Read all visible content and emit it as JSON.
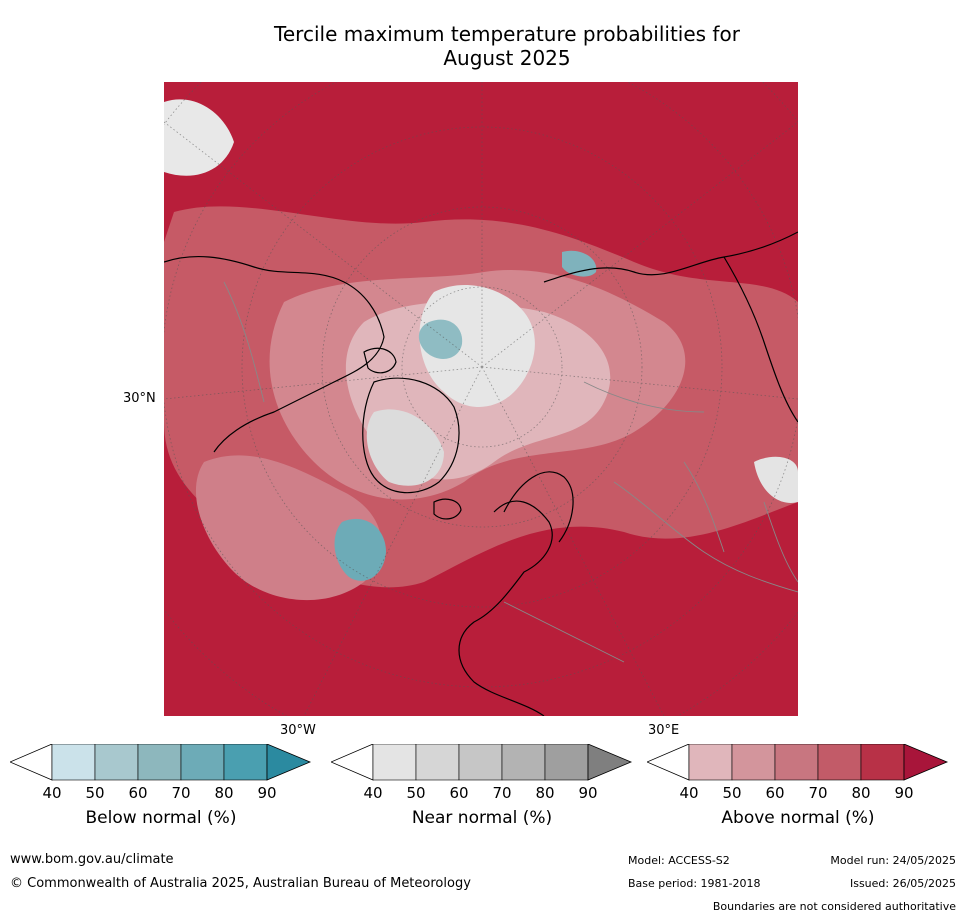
{
  "title": {
    "line1": "Tercile maximum temperature probabilities for",
    "line2": "August 2025"
  },
  "map": {
    "lat_label": "30°N",
    "lon_label_west": "30°W",
    "lon_label_east": "30°E"
  },
  "colorbars": [
    {
      "name": "below",
      "label": "Below normal (%)",
      "ticks": [
        "40",
        "50",
        "60",
        "70",
        "80",
        "90"
      ],
      "colors": [
        "#ffffff",
        "#cbe2ea",
        "#a8c8ce",
        "#8db7bd",
        "#6dabb7",
        "#4a9fb0",
        "#2b8aa0"
      ]
    },
    {
      "name": "near",
      "label": "Near normal (%)",
      "ticks": [
        "40",
        "50",
        "60",
        "70",
        "80",
        "90"
      ],
      "colors": [
        "#ffffff",
        "#e4e4e4",
        "#d6d6d6",
        "#c6c6c6",
        "#b3b3b3",
        "#9f9f9f",
        "#7f7f7f"
      ]
    },
    {
      "name": "above",
      "label": "Above normal (%)",
      "ticks": [
        "40",
        "50",
        "60",
        "70",
        "80",
        "90"
      ],
      "colors": [
        "#ffffff",
        "#e0b6bb",
        "#d3959c",
        "#c87680",
        "#c25b68",
        "#b83147",
        "#a8153a"
      ]
    }
  ],
  "footer": {
    "url": "www.bom.gov.au/climate",
    "copyright": "© Commonwealth of Australia 2025, Australian Bureau of Meteorology",
    "model": "Model: ACCESS-S2",
    "model_run": "Model run: 24/05/2025",
    "base_period": "Base period: 1981-2018",
    "issued": "Issued: 26/05/2025",
    "disclaimer": "Boundaries are not considered authoritative"
  }
}
